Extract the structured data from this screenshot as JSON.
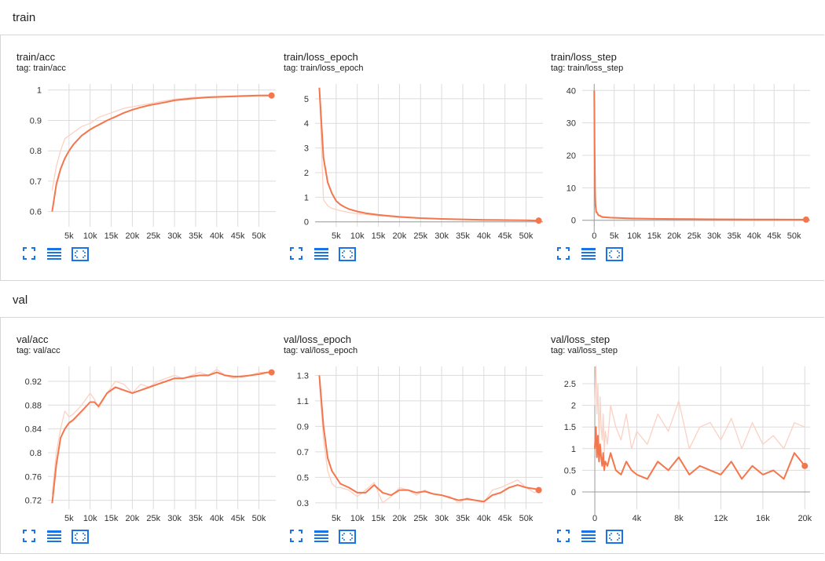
{
  "sections": [
    {
      "title": "train",
      "cards": [
        {
          "title": "train/acc",
          "tag_prefix": "tag:",
          "tag": "train/acc"
        },
        {
          "title": "train/loss_epoch",
          "tag_prefix": "tag:",
          "tag": "train/loss_epoch"
        },
        {
          "title": "train/loss_step",
          "tag_prefix": "tag:",
          "tag": "train/loss_step"
        }
      ]
    },
    {
      "title": "val",
      "cards": [
        {
          "title": "val/acc",
          "tag_prefix": "tag:",
          "tag": "val/acc"
        },
        {
          "title": "val/loss_epoch",
          "tag_prefix": "tag:",
          "tag": "val/loss_epoch"
        },
        {
          "title": "val/loss_step",
          "tag_prefix": "tag:",
          "tag": "val/loss_step"
        }
      ]
    }
  ],
  "toolbar_icons": [
    "fullscreen-icon",
    "data-table-icon",
    "fit-domain-icon"
  ],
  "colors": {
    "smoothed": "#f4764c",
    "raw": "#fbd1c4",
    "accent": "#1a73e8",
    "grid": "#dcdcdc"
  },
  "chart_data": [
    {
      "type": "line",
      "title": "train/acc",
      "xlim": [
        0,
        54000
      ],
      "ylim": [
        0.55,
        1.02
      ],
      "xticks": [
        5000,
        10000,
        15000,
        20000,
        25000,
        30000,
        35000,
        40000,
        45000,
        50000
      ],
      "xtick_labels": [
        "5k",
        "10k",
        "15k",
        "20k",
        "25k",
        "30k",
        "35k",
        "40k",
        "45k",
        "50k"
      ],
      "yticks": [
        0.6,
        0.7,
        0.8,
        0.9,
        1.0
      ],
      "ytick_labels": [
        "0.6",
        "0.7",
        "0.8",
        "0.9",
        "1"
      ],
      "x": [
        1000,
        2000,
        3000,
        4000,
        5000,
        6000,
        7000,
        8000,
        9000,
        10000,
        11000,
        12000,
        14000,
        16000,
        18000,
        20000,
        22000,
        24000,
        26000,
        28000,
        30000,
        34000,
        38000,
        42000,
        46000,
        50000,
        53000
      ],
      "series": [
        {
          "role": "raw",
          "values": [
            0.67,
            0.75,
            0.8,
            0.84,
            0.85,
            0.86,
            0.87,
            0.88,
            0.885,
            0.89,
            0.9,
            0.91,
            0.92,
            0.93,
            0.94,
            0.945,
            0.95,
            0.955,
            0.96,
            0.965,
            0.97,
            0.975,
            0.978,
            0.98,
            0.982,
            0.983,
            0.984
          ]
        },
        {
          "role": "smoothed",
          "values": [
            0.6,
            0.69,
            0.74,
            0.775,
            0.8,
            0.82,
            0.835,
            0.85,
            0.86,
            0.87,
            0.878,
            0.885,
            0.9,
            0.912,
            0.925,
            0.935,
            0.943,
            0.95,
            0.955,
            0.96,
            0.966,
            0.972,
            0.976,
            0.978,
            0.98,
            0.982,
            0.982
          ]
        }
      ]
    },
    {
      "type": "line",
      "title": "train/loss_epoch",
      "xlim": [
        0,
        54000
      ],
      "ylim": [
        -0.2,
        5.6
      ],
      "xticks": [
        5000,
        10000,
        15000,
        20000,
        25000,
        30000,
        35000,
        40000,
        45000,
        50000
      ],
      "xtick_labels": [
        "5k",
        "10k",
        "15k",
        "20k",
        "25k",
        "30k",
        "35k",
        "40k",
        "45k",
        "50k"
      ],
      "yticks": [
        0,
        1,
        2,
        3,
        4,
        5
      ],
      "ytick_labels": [
        "0",
        "1",
        "2",
        "3",
        "4",
        "5"
      ],
      "x": [
        1000,
        2000,
        3000,
        4000,
        5000,
        6000,
        7000,
        8000,
        10000,
        12000,
        15000,
        20000,
        25000,
        30000,
        35000,
        40000,
        45000,
        50000,
        53000
      ],
      "series": [
        {
          "role": "raw",
          "values": [
            5.4,
            0.9,
            0.65,
            0.55,
            0.5,
            0.45,
            0.42,
            0.38,
            0.33,
            0.3,
            0.25,
            0.18,
            0.14,
            0.12,
            0.1,
            0.08,
            0.07,
            0.06,
            0.05
          ]
        },
        {
          "role": "smoothed",
          "values": [
            5.45,
            2.6,
            1.6,
            1.15,
            0.85,
            0.7,
            0.6,
            0.52,
            0.42,
            0.35,
            0.28,
            0.2,
            0.15,
            0.12,
            0.1,
            0.08,
            0.07,
            0.06,
            0.05
          ]
        }
      ]
    },
    {
      "type": "line",
      "title": "train/loss_step",
      "xlim": [
        -3000,
        54000
      ],
      "ylim": [
        -2,
        42
      ],
      "xticks": [
        0,
        5000,
        10000,
        15000,
        20000,
        25000,
        30000,
        35000,
        40000,
        45000,
        50000
      ],
      "xtick_labels": [
        "0",
        "5k",
        "10k",
        "15k",
        "20k",
        "25k",
        "30k",
        "35k",
        "40k",
        "45k",
        "50k"
      ],
      "yticks": [
        0,
        10,
        20,
        30,
        40
      ],
      "ytick_labels": [
        "0",
        "10",
        "20",
        "30",
        "40"
      ],
      "x": [
        0,
        100,
        200,
        300,
        500,
        800,
        1000,
        1500,
        2000,
        3000,
        4000,
        6000,
        8000,
        10000,
        15000,
        20000,
        25000,
        30000,
        35000,
        40000,
        45000,
        50000,
        53000
      ],
      "series": [
        {
          "role": "raw",
          "values": [
            40,
            25,
            12,
            6,
            3,
            2.5,
            1.8,
            1.5,
            1.2,
            1.0,
            0.9,
            0.8,
            0.7,
            0.6,
            0.5,
            0.4,
            0.35,
            0.3,
            0.3,
            0.25,
            0.25,
            0.2,
            0.2
          ]
        },
        {
          "role": "smoothed",
          "values": [
            40,
            22,
            10,
            5,
            2.5,
            2.2,
            1.6,
            1.3,
            1.0,
            0.9,
            0.8,
            0.7,
            0.6,
            0.55,
            0.45,
            0.4,
            0.35,
            0.3,
            0.28,
            0.25,
            0.22,
            0.2,
            0.2
          ]
        }
      ]
    },
    {
      "type": "line",
      "title": "val/acc",
      "xlim": [
        0,
        54000
      ],
      "ylim": [
        0.705,
        0.945
      ],
      "xticks": [
        5000,
        10000,
        15000,
        20000,
        25000,
        30000,
        35000,
        40000,
        45000,
        50000
      ],
      "xtick_labels": [
        "5k",
        "10k",
        "15k",
        "20k",
        "25k",
        "30k",
        "35k",
        "40k",
        "45k",
        "50k"
      ],
      "yticks": [
        0.72,
        0.76,
        0.8,
        0.84,
        0.88,
        0.92
      ],
      "ytick_labels": [
        "0.72",
        "0.76",
        "0.8",
        "0.84",
        "0.88",
        "0.92"
      ],
      "x": [
        1000,
        2000,
        3000,
        4000,
        5000,
        6000,
        8000,
        10000,
        11000,
        12000,
        14000,
        16000,
        18000,
        20000,
        22000,
        24000,
        26000,
        28000,
        30000,
        32000,
        34000,
        36000,
        38000,
        40000,
        42000,
        44000,
        46000,
        48000,
        50000,
        52000,
        53000
      ],
      "series": [
        {
          "role": "raw",
          "values": [
            0.73,
            0.8,
            0.84,
            0.87,
            0.86,
            0.865,
            0.88,
            0.9,
            0.89,
            0.875,
            0.9,
            0.92,
            0.915,
            0.9,
            0.915,
            0.91,
            0.92,
            0.925,
            0.93,
            0.925,
            0.93,
            0.935,
            0.93,
            0.94,
            0.93,
            0.925,
            0.93,
            0.93,
            0.935,
            0.935,
            0.935
          ]
        },
        {
          "role": "smoothed",
          "values": [
            0.715,
            0.78,
            0.825,
            0.84,
            0.85,
            0.855,
            0.87,
            0.885,
            0.885,
            0.878,
            0.9,
            0.91,
            0.905,
            0.9,
            0.905,
            0.91,
            0.915,
            0.92,
            0.925,
            0.925,
            0.928,
            0.93,
            0.93,
            0.935,
            0.93,
            0.928,
            0.928,
            0.93,
            0.932,
            0.935,
            0.935
          ]
        }
      ]
    },
    {
      "type": "line",
      "title": "val/loss_epoch",
      "xlim": [
        0,
        54000
      ],
      "ylim": [
        0.25,
        1.37
      ],
      "xticks": [
        5000,
        10000,
        15000,
        20000,
        25000,
        30000,
        35000,
        40000,
        45000,
        50000
      ],
      "xtick_labels": [
        "5k",
        "10k",
        "15k",
        "20k",
        "25k",
        "30k",
        "35k",
        "40k",
        "45k",
        "50k"
      ],
      "yticks": [
        0.3,
        0.5,
        0.7,
        0.9,
        1.1,
        1.3
      ],
      "ytick_labels": [
        "0.3",
        "0.5",
        "0.7",
        "0.9",
        "1.1",
        "1.3"
      ],
      "x": [
        1000,
        2000,
        3000,
        4000,
        5000,
        6000,
        8000,
        10000,
        12000,
        14000,
        16000,
        18000,
        20000,
        22000,
        24000,
        26000,
        28000,
        30000,
        32000,
        34000,
        36000,
        38000,
        40000,
        42000,
        44000,
        46000,
        48000,
        50000,
        52000,
        53000
      ],
      "series": [
        {
          "role": "raw",
          "values": [
            1.25,
            0.8,
            0.55,
            0.45,
            0.42,
            0.42,
            0.4,
            0.35,
            0.4,
            0.46,
            0.3,
            0.35,
            0.42,
            0.4,
            0.36,
            0.4,
            0.37,
            0.36,
            0.35,
            0.3,
            0.34,
            0.32,
            0.3,
            0.4,
            0.42,
            0.45,
            0.48,
            0.42,
            0.38,
            0.4
          ]
        },
        {
          "role": "smoothed",
          "values": [
            1.3,
            0.9,
            0.65,
            0.55,
            0.5,
            0.45,
            0.42,
            0.38,
            0.38,
            0.44,
            0.38,
            0.36,
            0.4,
            0.4,
            0.38,
            0.39,
            0.37,
            0.36,
            0.34,
            0.32,
            0.33,
            0.32,
            0.31,
            0.36,
            0.38,
            0.42,
            0.44,
            0.42,
            0.41,
            0.4
          ]
        }
      ]
    },
    {
      "type": "line",
      "title": "val/loss_step",
      "xlim": [
        -1200,
        20500
      ],
      "ylim": [
        -0.4,
        2.9
      ],
      "xticks": [
        0,
        4000,
        8000,
        12000,
        16000,
        20000
      ],
      "xtick_labels": [
        "0",
        "4k",
        "8k",
        "12k",
        "16k",
        "20k"
      ],
      "yticks": [
        0,
        0.5,
        1,
        1.5,
        2,
        2.5
      ],
      "ytick_labels": [
        "0",
        "0.5",
        "1",
        "1.5",
        "2",
        "2.5"
      ],
      "x": [
        0,
        100,
        200,
        300,
        400,
        500,
        600,
        700,
        800,
        900,
        1000,
        1200,
        1500,
        2000,
        2500,
        3000,
        3500,
        4000,
        5000,
        6000,
        7000,
        8000,
        9000,
        10000,
        11000,
        12000,
        13000,
        14000,
        15000,
        16000,
        17000,
        18000,
        19000,
        20000
      ],
      "series": [
        {
          "role": "raw",
          "values": [
            2.0,
            2.9,
            1.8,
            2.5,
            1.0,
            2.2,
            1.5,
            1.2,
            1.8,
            0.9,
            1.4,
            1.1,
            2.0,
            1.5,
            1.2,
            1.8,
            1.0,
            1.4,
            1.1,
            1.8,
            1.4,
            2.1,
            1.0,
            1.5,
            1.6,
            1.2,
            1.7,
            1.0,
            1.6,
            1.1,
            1.3,
            1.0,
            1.6,
            1.5
          ]
        },
        {
          "role": "smoothed",
          "values": [
            1.0,
            1.5,
            0.8,
            1.3,
            0.7,
            1.1,
            0.8,
            0.6,
            0.9,
            0.5,
            0.7,
            0.6,
            0.9,
            0.5,
            0.4,
            0.7,
            0.5,
            0.4,
            0.3,
            0.7,
            0.5,
            0.8,
            0.4,
            0.6,
            0.5,
            0.4,
            0.7,
            0.3,
            0.6,
            0.4,
            0.5,
            0.3,
            0.9,
            0.6
          ]
        }
      ]
    }
  ]
}
